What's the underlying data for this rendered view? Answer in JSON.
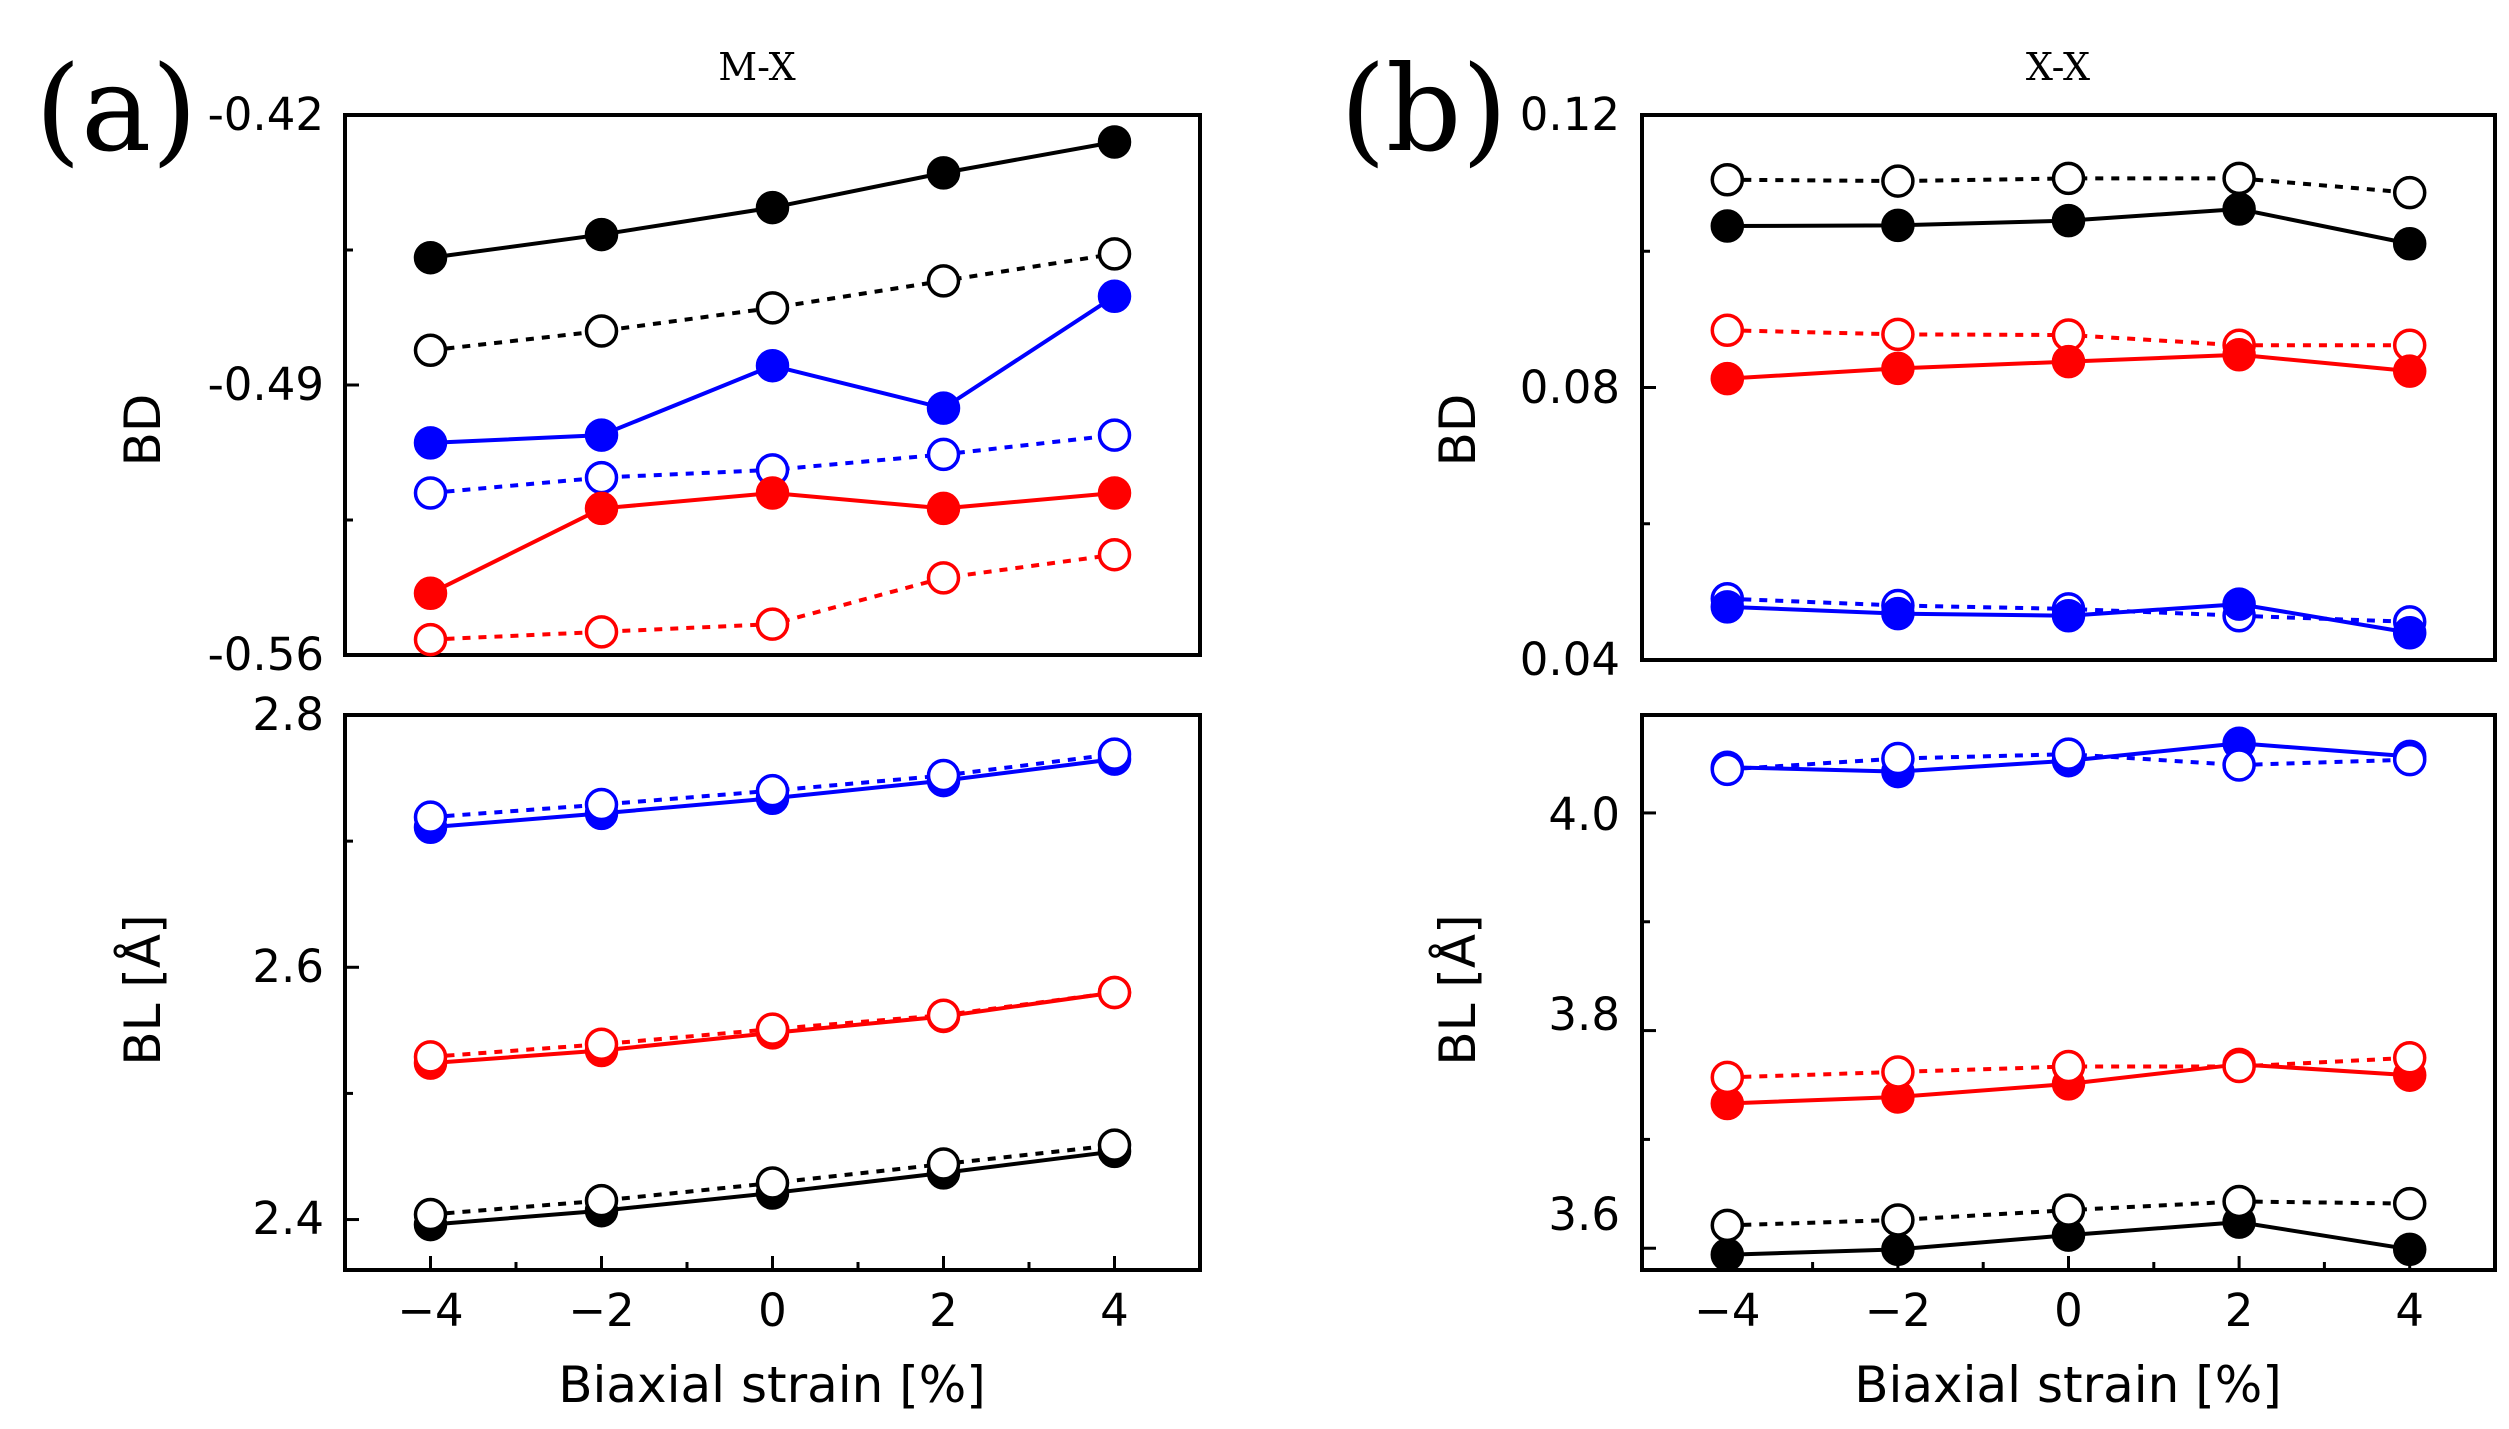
{
  "chart_data": {
    "type": "line",
    "x_values": [
      -4,
      -2,
      0,
      2,
      4
    ],
    "xlabel": "Biaxial strain [%]",
    "xticks": [
      "−4",
      "−2",
      "0",
      "2",
      "4"
    ],
    "line_styles": {
      "filled": "solid",
      "open": "dotted"
    },
    "colors": {
      "black": "#000000",
      "red": "#ff0000",
      "blue": "#0000ff"
    },
    "panels": [
      {
        "letter": "(a)",
        "title": "M-X",
        "plots": [
          {
            "id": "a-bd",
            "ylabel": "BD",
            "ylim": [
              -0.56,
              -0.42
            ],
            "yticks": [
              "-0.42",
              "-0.49",
              "-0.56"
            ],
            "series": [
              {
                "name": "black filled",
                "color": "black",
                "style": "filled",
                "values": [
                  -0.457,
                  -0.451,
                  -0.444,
                  -0.435,
                  -0.427
                ]
              },
              {
                "name": "black open",
                "color": "black",
                "style": "open",
                "values": [
                  -0.481,
                  -0.476,
                  -0.47,
                  -0.463,
                  -0.456
                ]
              },
              {
                "name": "blue filled",
                "color": "blue",
                "style": "filled",
                "values": [
                  -0.505,
                  -0.503,
                  -0.485,
                  -0.496,
                  -0.467
                ]
              },
              {
                "name": "blue open",
                "color": "blue",
                "style": "open",
                "values": [
                  -0.518,
                  -0.514,
                  -0.512,
                  -0.508,
                  -0.503
                ]
              },
              {
                "name": "red filled",
                "color": "red",
                "style": "filled",
                "values": [
                  -0.544,
                  -0.522,
                  -0.518,
                  -0.522,
                  -0.518
                ]
              },
              {
                "name": "red open",
                "color": "red",
                "style": "open",
                "values": [
                  -0.556,
                  -0.554,
                  -0.552,
                  -0.54,
                  -0.534
                ]
              }
            ]
          },
          {
            "id": "a-bl",
            "ylabel": "BL [Å]",
            "ylim": [
              2.36,
              2.8
            ],
            "yticks": [
              "2.8",
              "2.6",
              "2.4"
            ],
            "series": [
              {
                "name": "blue filled",
                "color": "blue",
                "style": "filled",
                "values": [
                  2.711,
                  2.722,
                  2.734,
                  2.748,
                  2.765
                ]
              },
              {
                "name": "blue open",
                "color": "blue",
                "style": "open",
                "values": [
                  2.719,
                  2.729,
                  2.74,
                  2.752,
                  2.769
                ]
              },
              {
                "name": "red filled",
                "color": "red",
                "style": "filled",
                "values": [
                  2.524,
                  2.534,
                  2.548,
                  2.561,
                  2.58
                ]
              },
              {
                "name": "red open",
                "color": "red",
                "style": "open",
                "values": [
                  2.529,
                  2.539,
                  2.551,
                  2.562,
                  2.58
                ]
              },
              {
                "name": "black filled",
                "color": "black",
                "style": "filled",
                "values": [
                  2.396,
                  2.407,
                  2.421,
                  2.437,
                  2.454
                ]
              },
              {
                "name": "black open",
                "color": "black",
                "style": "open",
                "values": [
                  2.404,
                  2.415,
                  2.429,
                  2.444,
                  2.459
                ]
              }
            ]
          }
        ]
      },
      {
        "letter": "(b)",
        "title": "X-X",
        "plots": [
          {
            "id": "b-bd",
            "ylabel": "BD",
            "ylim": [
              0.04,
              0.12
            ],
            "yticks": [
              "0.12",
              "0.08",
              "0.04"
            ],
            "series": [
              {
                "name": "black open",
                "color": "black",
                "style": "open",
                "values": [
                  0.1105,
                  0.1103,
                  0.1107,
                  0.1107,
                  0.1086
                ]
              },
              {
                "name": "black filled",
                "color": "black",
                "style": "filled",
                "values": [
                  0.1037,
                  0.1038,
                  0.1045,
                  0.1062,
                  0.1011
                ]
              },
              {
                "name": "red open",
                "color": "red",
                "style": "open",
                "values": [
                  0.0884,
                  0.0878,
                  0.0877,
                  0.0862,
                  0.0862
                ]
              },
              {
                "name": "red filled",
                "color": "red",
                "style": "filled",
                "values": [
                  0.0813,
                  0.0828,
                  0.0838,
                  0.0848,
                  0.0824
                ]
              },
              {
                "name": "blue open",
                "color": "blue",
                "style": "open",
                "values": [
                  0.049,
                  0.048,
                  0.0475,
                  0.0465,
                  0.0456
                ]
              },
              {
                "name": "blue filled",
                "color": "blue",
                "style": "filled",
                "values": [
                  0.0478,
                  0.0468,
                  0.0465,
                  0.0482,
                  0.044
                ]
              }
            ]
          },
          {
            "id": "b-bl",
            "ylabel": "BL [Å]",
            "ylim": [
              3.58,
              4.09
            ],
            "yticks": [
              "4.0",
              "3.8",
              "3.6"
            ],
            "series": [
              {
                "name": "blue filled",
                "color": "blue",
                "style": "filled",
                "values": [
                  4.042,
                  4.038,
                  4.048,
                  4.064,
                  4.052
                ]
              },
              {
                "name": "blue open",
                "color": "blue",
                "style": "open",
                "values": [
                  4.04,
                  4.05,
                  4.054,
                  4.044,
                  4.049
                ]
              },
              {
                "name": "red filled",
                "color": "red",
                "style": "filled",
                "values": [
                  3.733,
                  3.739,
                  3.751,
                  3.769,
                  3.759
                ]
              },
              {
                "name": "red open",
                "color": "red",
                "style": "open",
                "values": [
                  3.757,
                  3.762,
                  3.767,
                  3.767,
                  3.775
                ]
              },
              {
                "name": "black filled",
                "color": "black",
                "style": "filled",
                "values": [
                  3.594,
                  3.599,
                  3.612,
                  3.624,
                  3.599
                ]
              },
              {
                "name": "black open",
                "color": "black",
                "style": "open",
                "values": [
                  3.621,
                  3.626,
                  3.635,
                  3.643,
                  3.641
                ]
              }
            ]
          }
        ]
      }
    ]
  }
}
